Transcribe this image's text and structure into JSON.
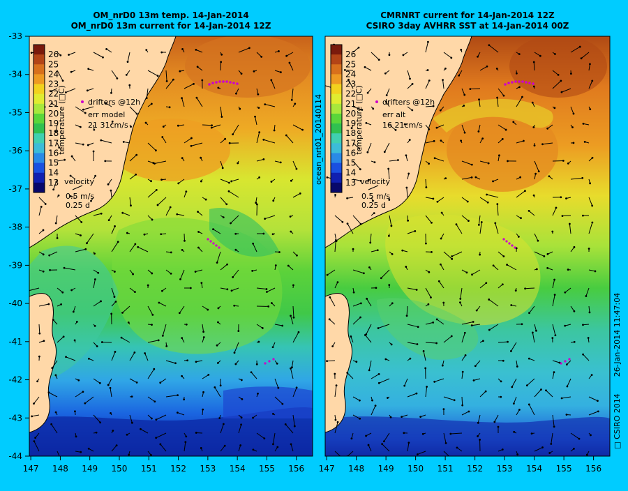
{
  "colors": {
    "background": "#00ccff",
    "land": "#ffd8a8",
    "drifter": "#cc00cc",
    "colormap": [
      "#08086a",
      "#1020b0",
      "#1a50e0",
      "#2a8ae6",
      "#3cbcd8",
      "#40d0b0",
      "#30c050",
      "#5ad63a",
      "#a8e83c",
      "#e0ec30",
      "#f2d21e",
      "#ee9a22",
      "#d8701c",
      "#b34416",
      "#7a1a0c"
    ]
  },
  "panels": [
    {
      "id": "left",
      "title_line1": "OM_nrD0 13m temp. 14-Jan-2014",
      "title_line2": "OM_nrD0 13m current for 14-Jan-2014 12Z",
      "err_line1": "err model",
      "err_line2": "21 31cm/s"
    },
    {
      "id": "right",
      "title_line1": "CMRNRT current for 14-Jan-2014 12Z",
      "title_line2": "CSIRO 3day AVHRR SST at 14-Jan-2014 00Z",
      "err_line1": "err alt",
      "err_line2": "16 21cm/s"
    }
  ],
  "colorbar": {
    "label": "temperature (□C)",
    "ticks": [
      "26",
      "25",
      "24",
      "23",
      "22",
      "21",
      "20",
      "19",
      "18",
      "17",
      "16",
      "15",
      "14",
      "13"
    ]
  },
  "legend": {
    "drifters": "drifters @12h",
    "velocity_title": "velocity",
    "velocity_scale": "0.5 m/s",
    "time_scale": "0.25 d"
  },
  "axes": {
    "lat_ticks": [
      "-33",
      "-34",
      "-35",
      "-36",
      "-37",
      "-38",
      "-39",
      "-40",
      "-41",
      "-42",
      "-43",
      "-44"
    ],
    "lon_ticks": [
      "147",
      "148",
      "149",
      "150",
      "151",
      "152",
      "153",
      "154",
      "155",
      "156"
    ]
  },
  "side_labels": {
    "product": "ocean_nrt01_20140114",
    "timestamp": "26-Jan-2014 11:47:04",
    "copyright": "□ CSIRO 2014"
  }
}
